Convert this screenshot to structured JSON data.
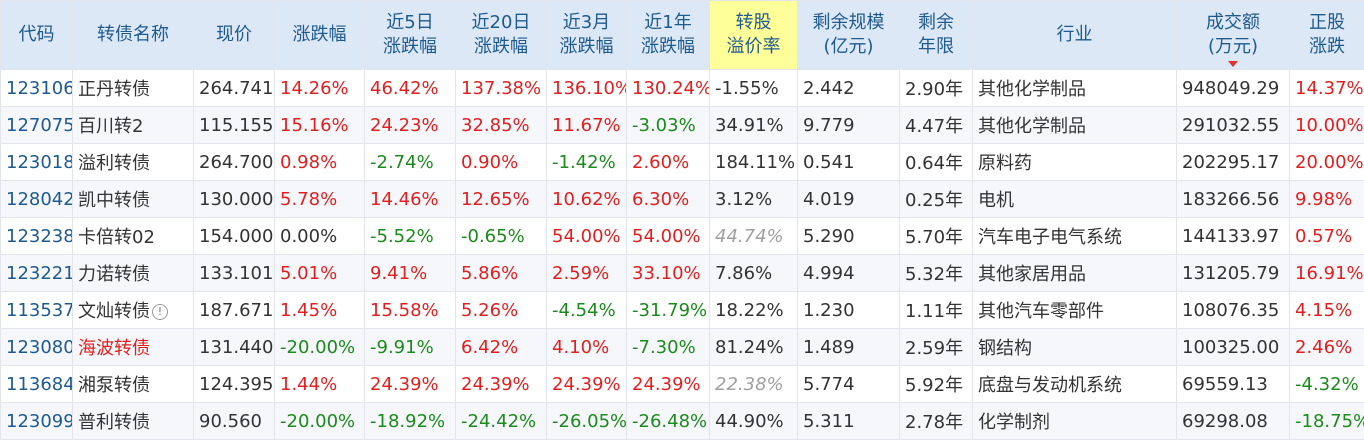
{
  "headers": [
    {
      "line1": "代码",
      "line2": ""
    },
    {
      "line1": "转债名称",
      "line2": ""
    },
    {
      "line1": "现价",
      "line2": ""
    },
    {
      "line1": "涨跌幅",
      "line2": ""
    },
    {
      "line1": "近5日",
      "line2": "涨跌幅"
    },
    {
      "line1": "近20日",
      "line2": "涨跌幅"
    },
    {
      "line1": "近3月",
      "line2": "涨跌幅"
    },
    {
      "line1": "近1年",
      "line2": "涨跌幅"
    },
    {
      "line1": "转股",
      "line2": "溢价率"
    },
    {
      "line1": "剩余规模",
      "line2": "(亿元)"
    },
    {
      "line1": "剩余",
      "line2": "年限"
    },
    {
      "line1": "行业",
      "line2": ""
    },
    {
      "line1": "成交额",
      "line2": "(万元)"
    },
    {
      "line1": "正股",
      "line2": "涨跌"
    }
  ],
  "colors": {
    "up": "#e02020",
    "down": "#1c8a1c",
    "code": "#1f5a8f",
    "header_bg": "#dce8f5",
    "highlight": "#ffff99"
  },
  "rows": [
    {
      "code": "123106",
      "name": "正丹转债",
      "price": "264.741",
      "chg": "14.26%",
      "chg5": "46.42%",
      "chg20": "137.38%",
      "chg3m": "136.10%",
      "chg1y": "130.24%",
      "premium": "-1.55%",
      "scale": "2.442",
      "years": "2.90年",
      "industry": "其他化学制品",
      "turnover": "948049.29",
      "stock_chg": "14.37%"
    },
    {
      "code": "127075",
      "name": "百川转2",
      "price": "115.155",
      "chg": "15.16%",
      "chg5": "24.23%",
      "chg20": "32.85%",
      "chg3m": "11.67%",
      "chg1y": "-3.03%",
      "premium": "34.91%",
      "scale": "9.779",
      "years": "4.47年",
      "industry": "其他化学制品",
      "turnover": "291032.55",
      "stock_chg": "10.00%"
    },
    {
      "code": "123018",
      "name": "溢利转债",
      "price": "264.700",
      "chg": "0.98%",
      "chg5": "-2.74%",
      "chg20": "0.90%",
      "chg3m": "-1.42%",
      "chg1y": "2.60%",
      "premium": "184.11%",
      "scale": "0.541",
      "years": "0.64年",
      "industry": "原料药",
      "turnover": "202295.17",
      "stock_chg": "20.00%"
    },
    {
      "code": "128042",
      "name": "凯中转债",
      "price": "130.000",
      "chg": "5.78%",
      "chg5": "14.46%",
      "chg20": "12.65%",
      "chg3m": "10.62%",
      "chg1y": "6.30%",
      "premium": "3.12%",
      "scale": "4.019",
      "years": "0.25年",
      "industry": "电机",
      "turnover": "183266.56",
      "stock_chg": "9.98%"
    },
    {
      "code": "123238",
      "name": "卡倍转02",
      "price": "154.000",
      "chg": "0.00%",
      "chg5": "-5.52%",
      "chg20": "-0.65%",
      "chg3m": "54.00%",
      "chg1y": "54.00%",
      "premium": "44.74%",
      "scale": "5.290",
      "years": "5.70年",
      "industry": "汽车电子电气系统",
      "turnover": "144133.97",
      "stock_chg": "0.57%"
    },
    {
      "code": "123221",
      "name": "力诺转债",
      "price": "133.101",
      "chg": "5.01%",
      "chg5": "9.41%",
      "chg20": "5.86%",
      "chg3m": "2.59%",
      "chg1y": "33.10%",
      "premium": "7.86%",
      "scale": "4.994",
      "years": "5.32年",
      "industry": "其他家居用品",
      "turnover": "131205.79",
      "stock_chg": "16.91%"
    },
    {
      "code": "113537",
      "name": "文灿转债",
      "price": "187.671",
      "chg": "1.45%",
      "chg5": "15.58%",
      "chg20": "5.26%",
      "chg3m": "-4.54%",
      "chg1y": "-31.79%",
      "premium": "18.22%",
      "scale": "1.230",
      "years": "1.11年",
      "industry": "其他汽车零部件",
      "turnover": "108076.35",
      "stock_chg": "4.15%"
    },
    {
      "code": "123080",
      "name": "海波转债",
      "price": "131.440",
      "chg": "-20.00%",
      "chg5": "-9.91%",
      "chg20": "6.42%",
      "chg3m": "4.10%",
      "chg1y": "-7.30%",
      "premium": "81.24%",
      "scale": "1.489",
      "years": "2.59年",
      "industry": "钢结构",
      "turnover": "100325.00",
      "stock_chg": "2.46%"
    },
    {
      "code": "113684",
      "name": "湘泵转债",
      "price": "124.395",
      "chg": "1.44%",
      "chg5": "24.39%",
      "chg20": "24.39%",
      "chg3m": "24.39%",
      "chg1y": "24.39%",
      "premium": "22.38%",
      "scale": "5.774",
      "years": "5.92年",
      "industry": "底盘与发动机系统",
      "turnover": "69559.13",
      "stock_chg": "-4.32%"
    },
    {
      "code": "123099",
      "name": "普利转债",
      "price": "90.560",
      "chg": "-20.00%",
      "chg5": "-18.92%",
      "chg20": "-24.42%",
      "chg3m": "-26.05%",
      "chg1y": "-26.48%",
      "premium": "44.90%",
      "scale": "5.311",
      "years": "2.78年",
      "industry": "化学制剂",
      "turnover": "69298.08",
      "stock_chg": "-18.75%"
    }
  ]
}
